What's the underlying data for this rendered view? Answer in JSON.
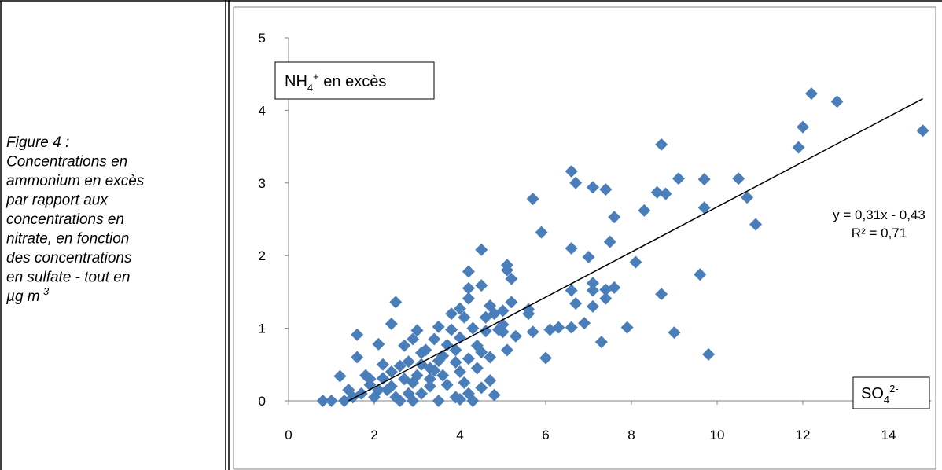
{
  "caption": {
    "lines": [
      "Figure 4 :",
      "Concentrations en",
      "ammonium en excès",
      "par rapport aux",
      "concentrations en",
      "nitrate, en fonction",
      "des concentrations",
      "en sulfate - tout en",
      "µg m"
    ],
    "sup": "-3"
  },
  "chart_data": {
    "type": "scatter",
    "y_label": [
      "NH",
      "4",
      "+",
      " en excès"
    ],
    "x_label": [
      "SO",
      "4",
      "2-"
    ],
    "annotations": [
      "y = 0,31x - 0,43",
      "R² = 0,71"
    ],
    "xlim": [
      0,
      15
    ],
    "ylim": [
      0,
      5
    ],
    "xticks": [
      0,
      2,
      4,
      6,
      8,
      10,
      12,
      14
    ],
    "yticks": [
      0,
      1,
      2,
      3,
      4,
      5
    ],
    "marker": "diamond",
    "series": [
      {
        "color": "#4a7ebb",
        "x": [
          12.2,
          12.8,
          14.8,
          12.0,
          11.9,
          8.7,
          6.6,
          6.7,
          7.1,
          7.4,
          9.1,
          9.7,
          10.5,
          8.6,
          8.8,
          10.7,
          5.7,
          8.3,
          9.7,
          7.6,
          10.9,
          5.9,
          7.5,
          6.6,
          4.5,
          7.0,
          8.1,
          5.1,
          5.1,
          9.6,
          4.2,
          5.2,
          7.1,
          4.5,
          4.2,
          6.6,
          7.1,
          7.4,
          8.7,
          5.6,
          4.2,
          7.4,
          7.1,
          6.7,
          5.2,
          2.5,
          4.0,
          7.6,
          5.0,
          5.6,
          4.7,
          6.9,
          6.3,
          6.1,
          6.6,
          7.9,
          5.7,
          9.0,
          6.0,
          9.8,
          7.3,
          5.3,
          2.4,
          1.6,
          2.1,
          3.0,
          3.5,
          3.8,
          4.6,
          4.9,
          5.1,
          4.4,
          4.5,
          3.9,
          3.4,
          2.7,
          3.1,
          2.8,
          2.6,
          2.4,
          2.2,
          1.9,
          1.6,
          1.2,
          1.4,
          1.0,
          0.8,
          1.5,
          1.9,
          2.1,
          2.5,
          2.6,
          2.9,
          3.1,
          3.3,
          3.5,
          3.7,
          3.9,
          4.1,
          4.3,
          4.5,
          4.7,
          4.8,
          4.4,
          4.2,
          3.6,
          3.2,
          2.9,
          3.4,
          3.7,
          4.0,
          4.3,
          4.6,
          5.0,
          4.1,
          3.8,
          4.8,
          2.3,
          2.0,
          1.7,
          1.3,
          2.7,
          3.0,
          3.3,
          3.6,
          4.0,
          2.2,
          2.9,
          3.1,
          3.5,
          3.9,
          4.7,
          5.0,
          1.8,
          2.4,
          2.8,
          4.2,
          3.3,
          4.0
        ],
        "values": [
          4.23,
          4.12,
          3.72,
          3.77,
          3.49,
          3.53,
          3.16,
          3.0,
          2.94,
          2.91,
          3.06,
          3.05,
          3.06,
          2.87,
          2.85,
          2.8,
          2.78,
          2.62,
          2.66,
          2.53,
          2.43,
          2.32,
          2.19,
          2.1,
          2.08,
          1.98,
          1.91,
          1.87,
          1.8,
          1.74,
          1.78,
          1.68,
          1.62,
          1.59,
          1.55,
          1.52,
          1.52,
          1.53,
          1.47,
          1.26,
          1.41,
          1.41,
          1.3,
          1.34,
          1.36,
          1.36,
          1.27,
          1.56,
          1.24,
          1.2,
          1.31,
          1.07,
          1.01,
          0.98,
          1.01,
          1.01,
          0.95,
          0.94,
          0.59,
          0.64,
          0.81,
          0.89,
          1.06,
          0.91,
          0.78,
          0.97,
          1.02,
          0.98,
          0.96,
          0.98,
          0.7,
          0.76,
          0.67,
          0.53,
          0.42,
          0.76,
          0.66,
          0.54,
          0.48,
          0.4,
          0.31,
          0.22,
          0.6,
          0.34,
          0.15,
          0,
          0,
          0.05,
          0.3,
          0.15,
          0.05,
          0,
          0,
          0.1,
          0.2,
          0,
          0.22,
          0.05,
          0.25,
          0,
          0.18,
          0.28,
          0.08,
          0.45,
          0.58,
          0.62,
          0.7,
          0.85,
          0.85,
          0.77,
          0.87,
          1.0,
          1.15,
          1.05,
          1.15,
          1.2,
          1.2,
          0.15,
          0.05,
          0.1,
          0,
          0.3,
          0.35,
          0.45,
          0.35,
          0.4,
          0.5,
          0.25,
          0.5,
          0.55,
          0.7,
          0.6,
          0.95,
          0.35,
          0.2,
          0.1,
          0.1,
          0.3,
          0.02
        ]
      }
    ],
    "trendline": {
      "color": "#000000",
      "x": [
        1.4,
        14.8
      ],
      "values": [
        0,
        4.16
      ]
    }
  }
}
